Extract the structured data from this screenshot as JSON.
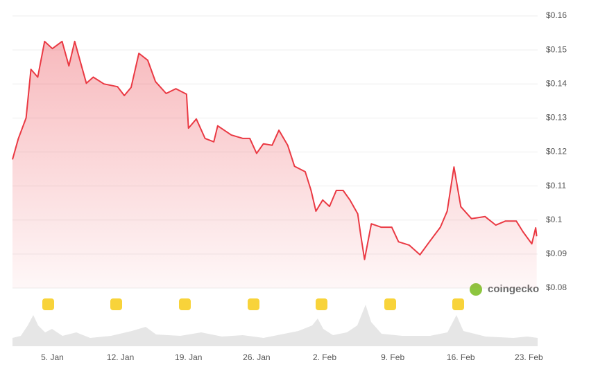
{
  "chart_data": {
    "type": "line",
    "watermark": "coingecko",
    "x": [
      0.9,
      1.5,
      2.3,
      2.8,
      3.5,
      4.2,
      5,
      6,
      6.7,
      7.3,
      8,
      8.5,
      9.2,
      10.3,
      11.7,
      12.4,
      13.1,
      13.9,
      14.8,
      15.6,
      16.7,
      17.7,
      18.8,
      19,
      19.8,
      20.7,
      21.6,
      22,
      23.4,
      24.6,
      25.3,
      26,
      26.7,
      27.6,
      28.3,
      29.2,
      29.9,
      31,
      31.6,
      32.1,
      32.8,
      33.5,
      34.2,
      34.9,
      35.6,
      36.4,
      36.7,
      37.1,
      37.8,
      38.8,
      39.9,
      40.6,
      41.7,
      42.8,
      43.8,
      44.9,
      45.6,
      46.3,
      47,
      48.1,
      49.5,
      50.6,
      51.6,
      52.7,
      53.4,
      54.3,
      54.7,
      54.8
    ],
    "series": [
      {
        "color": "#ea3943",
        "values": [
          0.1178,
          0.1239,
          0.13,
          0.1443,
          0.142,
          0.1525,
          0.1504,
          0.1525,
          0.1453,
          0.1525,
          0.1453,
          0.1402,
          0.142,
          0.14,
          0.1392,
          0.1366,
          0.139,
          0.149,
          0.147,
          0.1407,
          0.1372,
          0.1386,
          0.137,
          0.127,
          0.1297,
          0.124,
          0.123,
          0.1277,
          0.125,
          0.124,
          0.124,
          0.1196,
          0.1224,
          0.122,
          0.1264,
          0.122,
          0.1158,
          0.1142,
          0.1087,
          0.1026,
          0.1059,
          0.104,
          0.1087,
          0.1087,
          0.1059,
          0.1018,
          0.0957,
          0.0884,
          0.0989,
          0.0979,
          0.0979,
          0.0936,
          0.0926,
          0.0898,
          0.0937,
          0.0979,
          0.1026,
          0.1156,
          0.1039,
          0.1004,
          0.101,
          0.0985,
          0.0997,
          0.0997,
          0.0965,
          0.093,
          0.0977,
          0.0952
        ]
      }
    ],
    "xlim": [
      0.9,
      54.9
    ],
    "xticks": [
      {
        "value": 5,
        "label": "5. Jan"
      },
      {
        "value": 12,
        "label": "12. Jan"
      },
      {
        "value": 19,
        "label": "19. Jan"
      },
      {
        "value": 26,
        "label": "26. Jan"
      },
      {
        "value": 33,
        "label": "2. Feb"
      },
      {
        "value": 40,
        "label": "9. Feb"
      },
      {
        "value": 47,
        "label": "16. Feb"
      },
      {
        "value": 54,
        "label": "23. Feb"
      }
    ],
    "ylim": [
      0.08,
      0.16
    ],
    "yticks": [
      {
        "value": 0.08,
        "label": "$0.08"
      },
      {
        "value": 0.09,
        "label": "$0.09"
      },
      {
        "value": 0.1,
        "label": "$0.1"
      },
      {
        "value": 0.11,
        "label": "$0.11"
      },
      {
        "value": 0.12,
        "label": "$0.12"
      },
      {
        "value": 0.13,
        "label": "$0.13"
      },
      {
        "value": 0.14,
        "label": "$0.14"
      },
      {
        "value": 0.15,
        "label": "$0.15"
      },
      {
        "value": 0.16,
        "label": "$0.16"
      }
    ],
    "grid": true
  }
}
